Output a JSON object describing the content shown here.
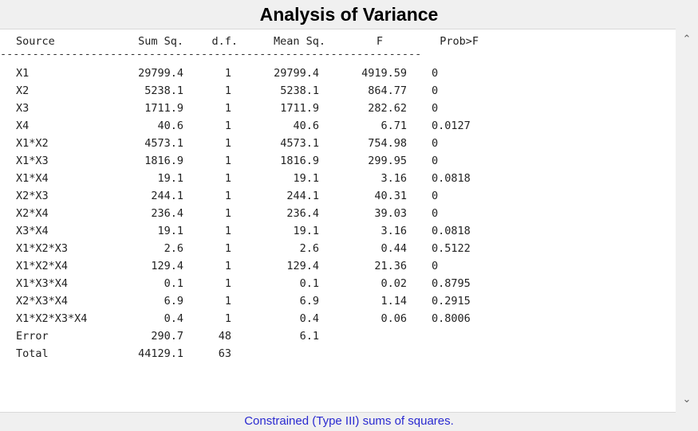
{
  "title": "Analysis of Variance",
  "columns": {
    "source": "Source",
    "sum_sq": "Sum Sq.",
    "df": "d.f.",
    "mean_sq": "Mean Sq.",
    "f": "F",
    "prob": "Prob>F"
  },
  "separator": "-----------------------------------------------------------------",
  "rows": [
    {
      "source": "X1",
      "sum_sq": "29799.4",
      "df": "1",
      "mean_sq": "29799.4",
      "f": "4919.59",
      "prob": "0"
    },
    {
      "source": "X2",
      "sum_sq": "5238.1",
      "df": "1",
      "mean_sq": "5238.1",
      "f": "864.77",
      "prob": "0"
    },
    {
      "source": "X3",
      "sum_sq": "1711.9",
      "df": "1",
      "mean_sq": "1711.9",
      "f": "282.62",
      "prob": "0"
    },
    {
      "source": "X4",
      "sum_sq": "40.6",
      "df": "1",
      "mean_sq": "40.6",
      "f": "6.71",
      "prob": "0.0127"
    },
    {
      "source": "X1*X2",
      "sum_sq": "4573.1",
      "df": "1",
      "mean_sq": "4573.1",
      "f": "754.98",
      "prob": "0"
    },
    {
      "source": "X1*X3",
      "sum_sq": "1816.9",
      "df": "1",
      "mean_sq": "1816.9",
      "f": "299.95",
      "prob": "0"
    },
    {
      "source": "X1*X4",
      "sum_sq": "19.1",
      "df": "1",
      "mean_sq": "19.1",
      "f": "3.16",
      "prob": "0.0818"
    },
    {
      "source": "X2*X3",
      "sum_sq": "244.1",
      "df": "1",
      "mean_sq": "244.1",
      "f": "40.31",
      "prob": "0"
    },
    {
      "source": "X2*X4",
      "sum_sq": "236.4",
      "df": "1",
      "mean_sq": "236.4",
      "f": "39.03",
      "prob": "0"
    },
    {
      "source": "X3*X4",
      "sum_sq": "19.1",
      "df": "1",
      "mean_sq": "19.1",
      "f": "3.16",
      "prob": "0.0818"
    },
    {
      "source": "X1*X2*X3",
      "sum_sq": "2.6",
      "df": "1",
      "mean_sq": "2.6",
      "f": "0.44",
      "prob": "0.5122"
    },
    {
      "source": "X1*X2*X4",
      "sum_sq": "129.4",
      "df": "1",
      "mean_sq": "129.4",
      "f": "21.36",
      "prob": "0"
    },
    {
      "source": "X1*X3*X4",
      "sum_sq": "0.1",
      "df": "1",
      "mean_sq": "0.1",
      "f": "0.02",
      "prob": "0.8795"
    },
    {
      "source": "X2*X3*X4",
      "sum_sq": "6.9",
      "df": "1",
      "mean_sq": "6.9",
      "f": "1.14",
      "prob": "0.2915"
    },
    {
      "source": "X1*X2*X3*X4",
      "sum_sq": "0.4",
      "df": "1",
      "mean_sq": "0.4",
      "f": "0.06",
      "prob": "0.8006"
    },
    {
      "source": "Error",
      "sum_sq": "290.7",
      "df": "48",
      "mean_sq": "6.1",
      "f": "",
      "prob": ""
    },
    {
      "source": "Total",
      "sum_sq": "44129.1",
      "df": "63",
      "mean_sq": "",
      "f": "",
      "prob": ""
    }
  ],
  "scrollbar": {
    "up_icon": "chevron-up-icon",
    "down_icon": "chevron-down-icon"
  },
  "footer": "Constrained (Type III) sums of squares."
}
